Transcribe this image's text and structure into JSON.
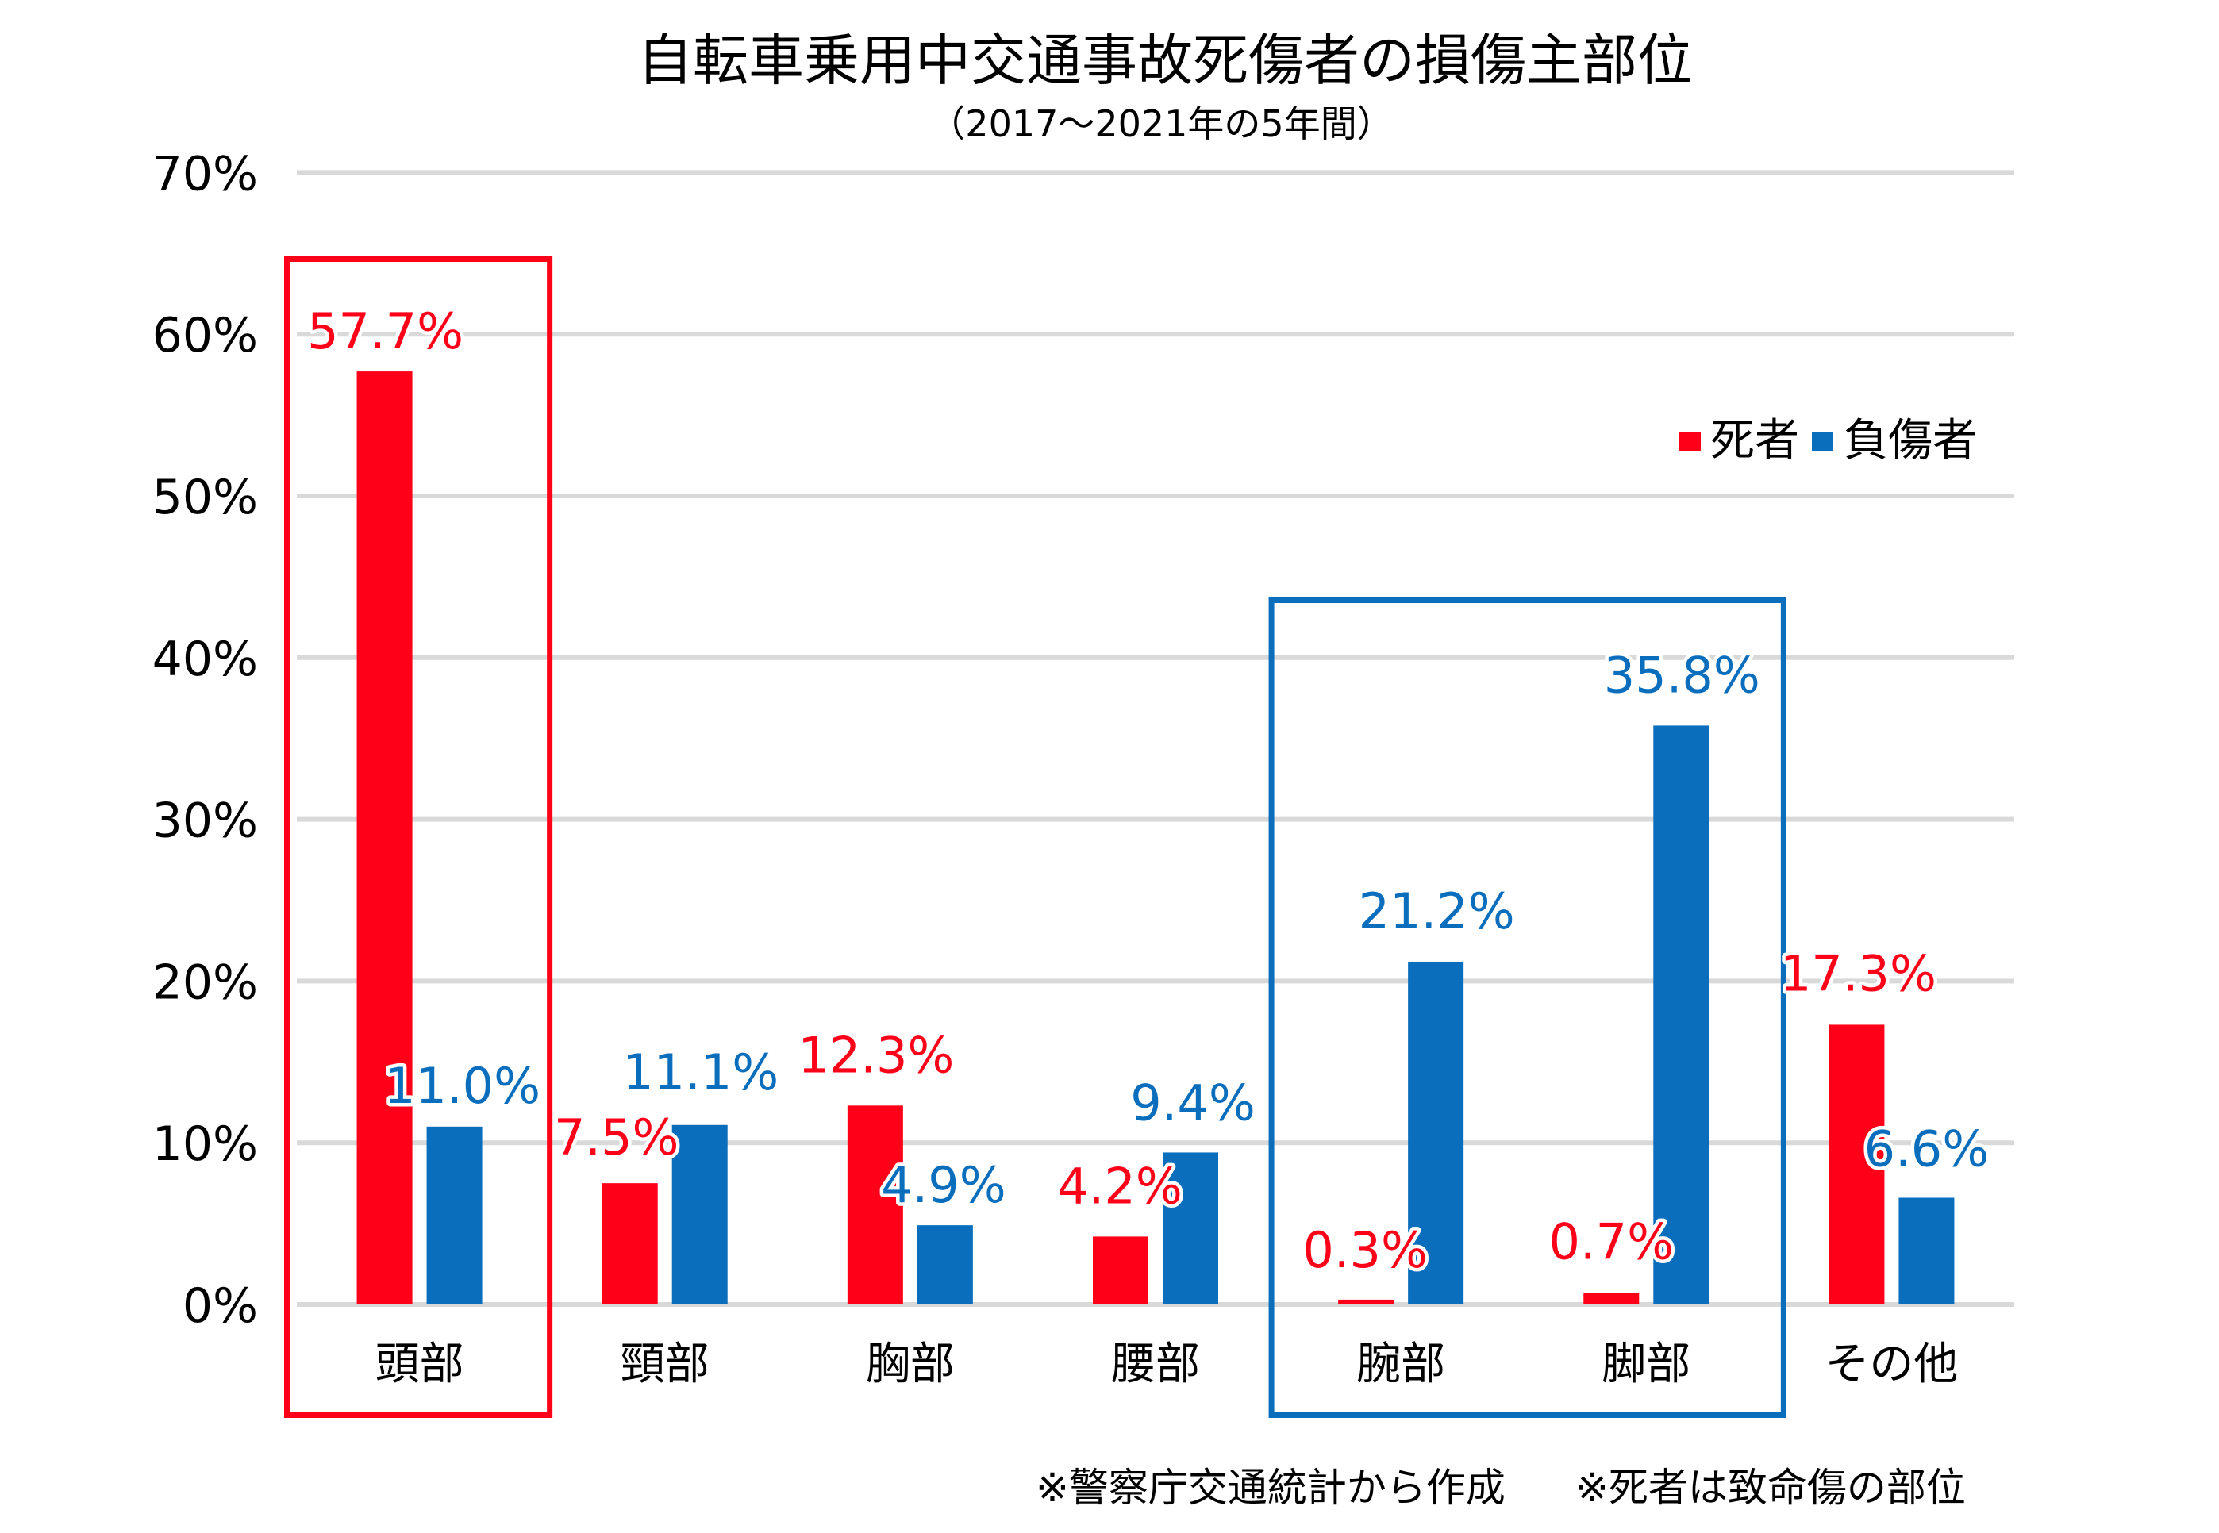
{
  "chart_data": {
    "type": "bar",
    "title": "自転車乗用中交通事故死傷者の損傷主部位",
    "subtitle": "（2017～2021年の5年間）",
    "xlabel": "",
    "ylabel": "",
    "categories": [
      "頭部",
      "頸部",
      "胸部",
      "腰部",
      "腕部",
      "脚部",
      "その他"
    ],
    "series": [
      {
        "name": "死者",
        "color": "#FF0019",
        "values": [
          57.7,
          7.5,
          12.3,
          4.2,
          0.3,
          0.7,
          17.3
        ],
        "labels": [
          "57.7%",
          "7.5%",
          "12.3%",
          "4.2%",
          "0.3%",
          "0.7%",
          "17.3%"
        ]
      },
      {
        "name": "負傷者",
        "color": "#0A6EBD",
        "values": [
          11.0,
          11.1,
          4.9,
          9.4,
          21.2,
          35.8,
          6.6
        ],
        "labels": [
          "11.0%",
          "11.1%",
          "4.9%",
          "9.4%",
          "21.2%",
          "35.8%",
          "6.6%"
        ]
      }
    ],
    "unit": "%",
    "ylim": [
      0,
      70
    ],
    "yticks": [
      0,
      10,
      20,
      30,
      40,
      50,
      60,
      70
    ],
    "ytick_labels": [
      "0%",
      "10%",
      "20%",
      "30%",
      "40%",
      "50%",
      "60%",
      "70%"
    ],
    "grid": true,
    "grid_color": "#D9D9D9",
    "legend": {
      "position": "top-right"
    },
    "highlights": [
      {
        "categories": [
          "頭部"
        ],
        "color": "#FF0019"
      },
      {
        "categories": [
          "腕部",
          "脚部"
        ],
        "color": "#0A6EBD"
      }
    ],
    "notes": [
      "※警察庁交通統計から作成",
      "※死者は致命傷の部位"
    ]
  }
}
